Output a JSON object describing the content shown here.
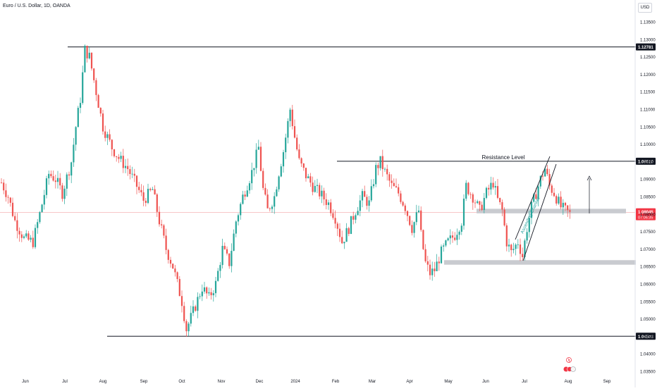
{
  "header": {
    "title": "Euro / U.S. Dollar, 1D, OANDA",
    "currency": "USD"
  },
  "colors": {
    "up": "#26a69a",
    "down": "#ef5350",
    "zone": "#c9cbd0",
    "line": "#131722",
    "price_label": "#f23645",
    "channel": "#131722",
    "channel_text": "#2ea3a0"
  },
  "chart_data": {
    "type": "candlestick",
    "symbol": "Euro / U.S. Dollar",
    "interval": "1D",
    "source": "OANDA",
    "y_ticks": [
      "1.13500",
      "1.13000",
      "1.12500",
      "1.12000",
      "1.11500",
      "1.11000",
      "1.10500",
      "1.10000",
      "1.09500",
      "1.09000",
      "1.08500",
      "1.08000",
      "1.07500",
      "1.07000",
      "1.06500",
      "1.06000",
      "1.05500",
      "1.05000",
      "1.04500",
      "1.04000",
      "1.03500"
    ],
    "x_ticks": [
      "Jun",
      "Jul",
      "Aug",
      "Sep",
      "Oct",
      "Nov",
      "Dec",
      "2024",
      "Feb",
      "Mar",
      "Apr",
      "May",
      "Jun",
      "Jul",
      "Aug",
      "Sep"
    ],
    "ylim": [
      1.033,
      1.137
    ],
    "horizontal_levels": [
      {
        "price": 1.12781,
        "label": "1.12781"
      },
      {
        "price": 1.0951,
        "label": "1.09510",
        "annotation": "Resistance Level"
      },
      {
        "price": 1.04503,
        "label": "1.04503"
      }
    ],
    "current_price": {
      "price": 1.08045,
      "label": "1.08045",
      "countdown": "07:06:35"
    },
    "support_zones": [
      {
        "from_price": 1.0815,
        "to_price": 1.0802
      },
      {
        "from_price": 1.0668,
        "to_price": 1.0655
      }
    ],
    "channel_label": "Ascending Channel",
    "resistance_label": "Resistance Level",
    "price_path": [
      [
        0,
        1.089
      ],
      [
        3,
        1.085
      ],
      [
        6,
        1.078
      ],
      [
        10,
        1.073
      ],
      [
        14,
        1.072
      ],
      [
        17,
        1.08
      ],
      [
        21,
        1.0915
      ],
      [
        24,
        1.09
      ],
      [
        27,
        1.086
      ],
      [
        31,
        1.095
      ],
      [
        33,
        1.105
      ],
      [
        35,
        1.113
      ],
      [
        37,
        1.127
      ],
      [
        39,
        1.125
      ],
      [
        42,
        1.115
      ],
      [
        45,
        1.105
      ],
      [
        49,
        1.099
      ],
      [
        52,
        1.096
      ],
      [
        56,
        1.093
      ],
      [
        60,
        1.088
      ],
      [
        63,
        1.084
      ],
      [
        67,
        1.087
      ],
      [
        70,
        1.078
      ],
      [
        73,
        1.07
      ],
      [
        76,
        1.065
      ],
      [
        80,
        1.055
      ],
      [
        82,
        1.047
      ],
      [
        85,
        1.052
      ],
      [
        89,
        1.059
      ],
      [
        92,
        1.056
      ],
      [
        95,
        1.06
      ],
      [
        98,
        1.07
      ],
      [
        101,
        1.066
      ],
      [
        104,
        1.078
      ],
      [
        107,
        1.085
      ],
      [
        111,
        1.092
      ],
      [
        114,
        1.099
      ],
      [
        116,
        1.087
      ],
      [
        118,
        1.081
      ],
      [
        121,
        1.085
      ],
      [
        123,
        1.092
      ],
      [
        125,
        1.098
      ],
      [
        128,
        1.11
      ],
      [
        130,
        1.102
      ],
      [
        132,
        1.095
      ],
      [
        135,
        1.091
      ],
      [
        138,
        1.088
      ],
      [
        141,
        1.086
      ],
      [
        145,
        1.083
      ],
      [
        148,
        1.079
      ],
      [
        151,
        1.072
      ],
      [
        154,
        1.076
      ],
      [
        157,
        1.081
      ],
      [
        160,
        1.085
      ],
      [
        163,
        1.083
      ],
      [
        166,
        1.093
      ],
      [
        168,
        1.095
      ],
      [
        170,
        1.092
      ],
      [
        173,
        1.088
      ],
      [
        176,
        1.086
      ],
      [
        179,
        1.082
      ],
      [
        182,
        1.076
      ],
      [
        185,
        1.081
      ],
      [
        186,
        1.074
      ],
      [
        188,
        1.066
      ],
      [
        190,
        1.063
      ],
      [
        192,
        1.064
      ],
      [
        195,
        1.069
      ],
      [
        198,
        1.072
      ],
      [
        201,
        1.074
      ],
      [
        204,
        1.078
      ],
      [
        206,
        1.088
      ],
      [
        209,
        1.085
      ],
      [
        212,
        1.081
      ],
      [
        215,
        1.086
      ],
      [
        218,
        1.089
      ],
      [
        220,
        1.084
      ],
      [
        222,
        1.081
      ],
      [
        224,
        1.072
      ],
      [
        226,
        1.069
      ],
      [
        229,
        1.072
      ],
      [
        231,
        1.068
      ],
      [
        233,
        1.076
      ],
      [
        235,
        1.082
      ],
      [
        237,
        1.086
      ],
      [
        239,
        1.09
      ],
      [
        241,
        1.093
      ],
      [
        243,
        1.088
      ],
      [
        245,
        1.086
      ],
      [
        248,
        1.082
      ],
      [
        250,
        1.081
      ],
      [
        252,
        1.08
      ]
    ]
  }
}
